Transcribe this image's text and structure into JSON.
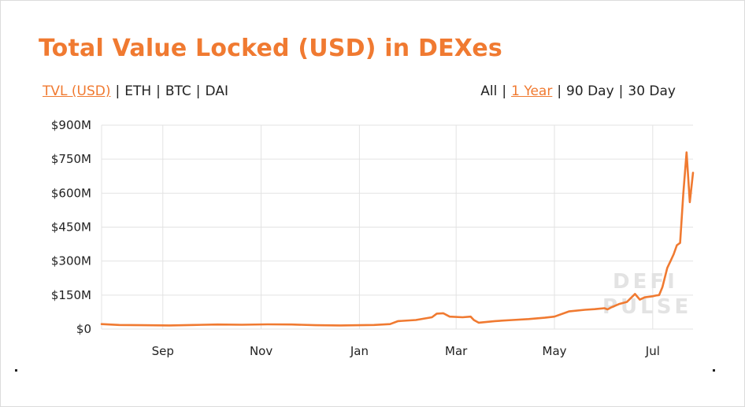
{
  "title": "Total Value Locked (USD) in DEXes",
  "nav_left": {
    "items": [
      "TVL (USD)",
      "ETH",
      "BTC",
      "DAI"
    ],
    "active": 0
  },
  "nav_right": {
    "items": [
      "All",
      "1 Year",
      "90 Day",
      "30 Day"
    ],
    "active": 1
  },
  "watermark": [
    "DEFI",
    "PULSE"
  ],
  "colors": {
    "accent": "#f07a31",
    "grid": "#e3e3e3",
    "text": "#222222"
  },
  "chart_data": {
    "type": "line",
    "title": "Total Value Locked (USD) in DEXes",
    "xlabel": "",
    "ylabel": "",
    "x_ticks": [
      "Sep",
      "Nov",
      "Jan",
      "Mar",
      "May",
      "Jul"
    ],
    "y_ticks": [
      "$0",
      "$150M",
      "$300M",
      "$450M",
      "$600M",
      "$750M",
      "$900M"
    ],
    "ylim": [
      0,
      900
    ],
    "xlim": [
      "2019-07-25",
      "2020-07-26"
    ],
    "grid": true,
    "series": [
      {
        "color": "#f07a31",
        "x": [
          "2019-07-25",
          "2019-08-05",
          "2019-08-20",
          "2019-09-05",
          "2019-09-20",
          "2019-10-05",
          "2019-10-20",
          "2019-11-05",
          "2019-11-20",
          "2019-12-05",
          "2019-12-20",
          "2020-01-01",
          "2020-01-10",
          "2020-01-20",
          "2020-01-25",
          "2020-02-05",
          "2020-02-15",
          "2020-02-18",
          "2020-02-22",
          "2020-02-26",
          "2020-03-05",
          "2020-03-10",
          "2020-03-12",
          "2020-03-15",
          "2020-03-25",
          "2020-04-05",
          "2020-04-15",
          "2020-04-25",
          "2020-05-01",
          "2020-05-10",
          "2020-05-20",
          "2020-05-26",
          "2020-06-01",
          "2020-06-03",
          "2020-06-05",
          "2020-06-10",
          "2020-06-15",
          "2020-06-20",
          "2020-06-23",
          "2020-06-26",
          "2020-07-01",
          "2020-07-03",
          "2020-07-05",
          "2020-07-07",
          "2020-07-10",
          "2020-07-12",
          "2020-07-14",
          "2020-07-16",
          "2020-07-18",
          "2020-07-20",
          "2020-07-22",
          "2020-07-24",
          "2020-07-26"
        ],
        "values": [
          22,
          18,
          17,
          16,
          18,
          20,
          19,
          21,
          20,
          17,
          16,
          17,
          18,
          22,
          35,
          40,
          52,
          68,
          70,
          55,
          52,
          55,
          40,
          28,
          35,
          40,
          44,
          50,
          55,
          78,
          85,
          88,
          92,
          87,
          95,
          110,
          120,
          155,
          130,
          140,
          145,
          148,
          150,
          185,
          270,
          300,
          330,
          370,
          380,
          600,
          780,
          560,
          690
        ]
      }
    ]
  }
}
